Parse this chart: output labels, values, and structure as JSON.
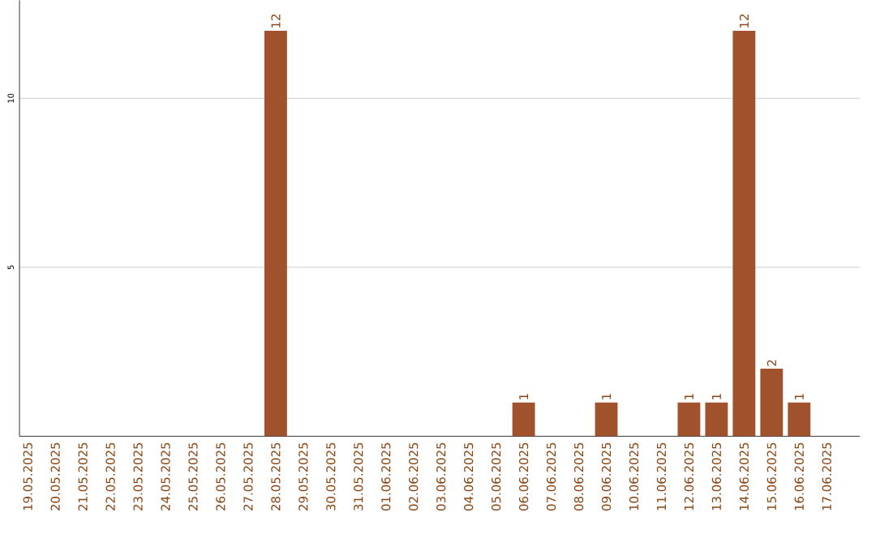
{
  "chart_data": {
    "type": "bar",
    "categories": [
      "19.05.2025",
      "20.05.2025",
      "21.05.2025",
      "22.05.2025",
      "23.05.2025",
      "24.05.2025",
      "25.05.2025",
      "26.05.2025",
      "27.05.2025",
      "28.05.2025",
      "29.05.2025",
      "30.05.2025",
      "31.05.2025",
      "01.06.2025",
      "02.06.2025",
      "03.06.2025",
      "04.06.2025",
      "05.06.2025",
      "06.06.2025",
      "07.06.2025",
      "08.06.2025",
      "09.06.2025",
      "10.06.2025",
      "11.06.2025",
      "12.06.2025",
      "13.06.2025",
      "14.06.2025",
      "15.06.2025",
      "16.06.2025",
      "17.06.2025"
    ],
    "values": [
      0,
      0,
      0,
      0,
      0,
      0,
      0,
      0,
      0,
      12,
      0,
      0,
      0,
      0,
      0,
      0,
      0,
      0,
      1,
      0,
      0,
      1,
      0,
      0,
      1,
      1,
      12,
      2,
      1,
      0
    ],
    "value_labels": [
      null,
      null,
      null,
      null,
      null,
      null,
      null,
      null,
      null,
      "12",
      null,
      null,
      null,
      null,
      null,
      null,
      null,
      null,
      "1",
      null,
      null,
      "1",
      null,
      null,
      "1",
      "1",
      "12",
      "2",
      "1",
      null
    ],
    "color": "#a0522d",
    "ylim": [
      0,
      12.9
    ],
    "yticks": [
      5,
      10
    ],
    "grid": "y"
  }
}
